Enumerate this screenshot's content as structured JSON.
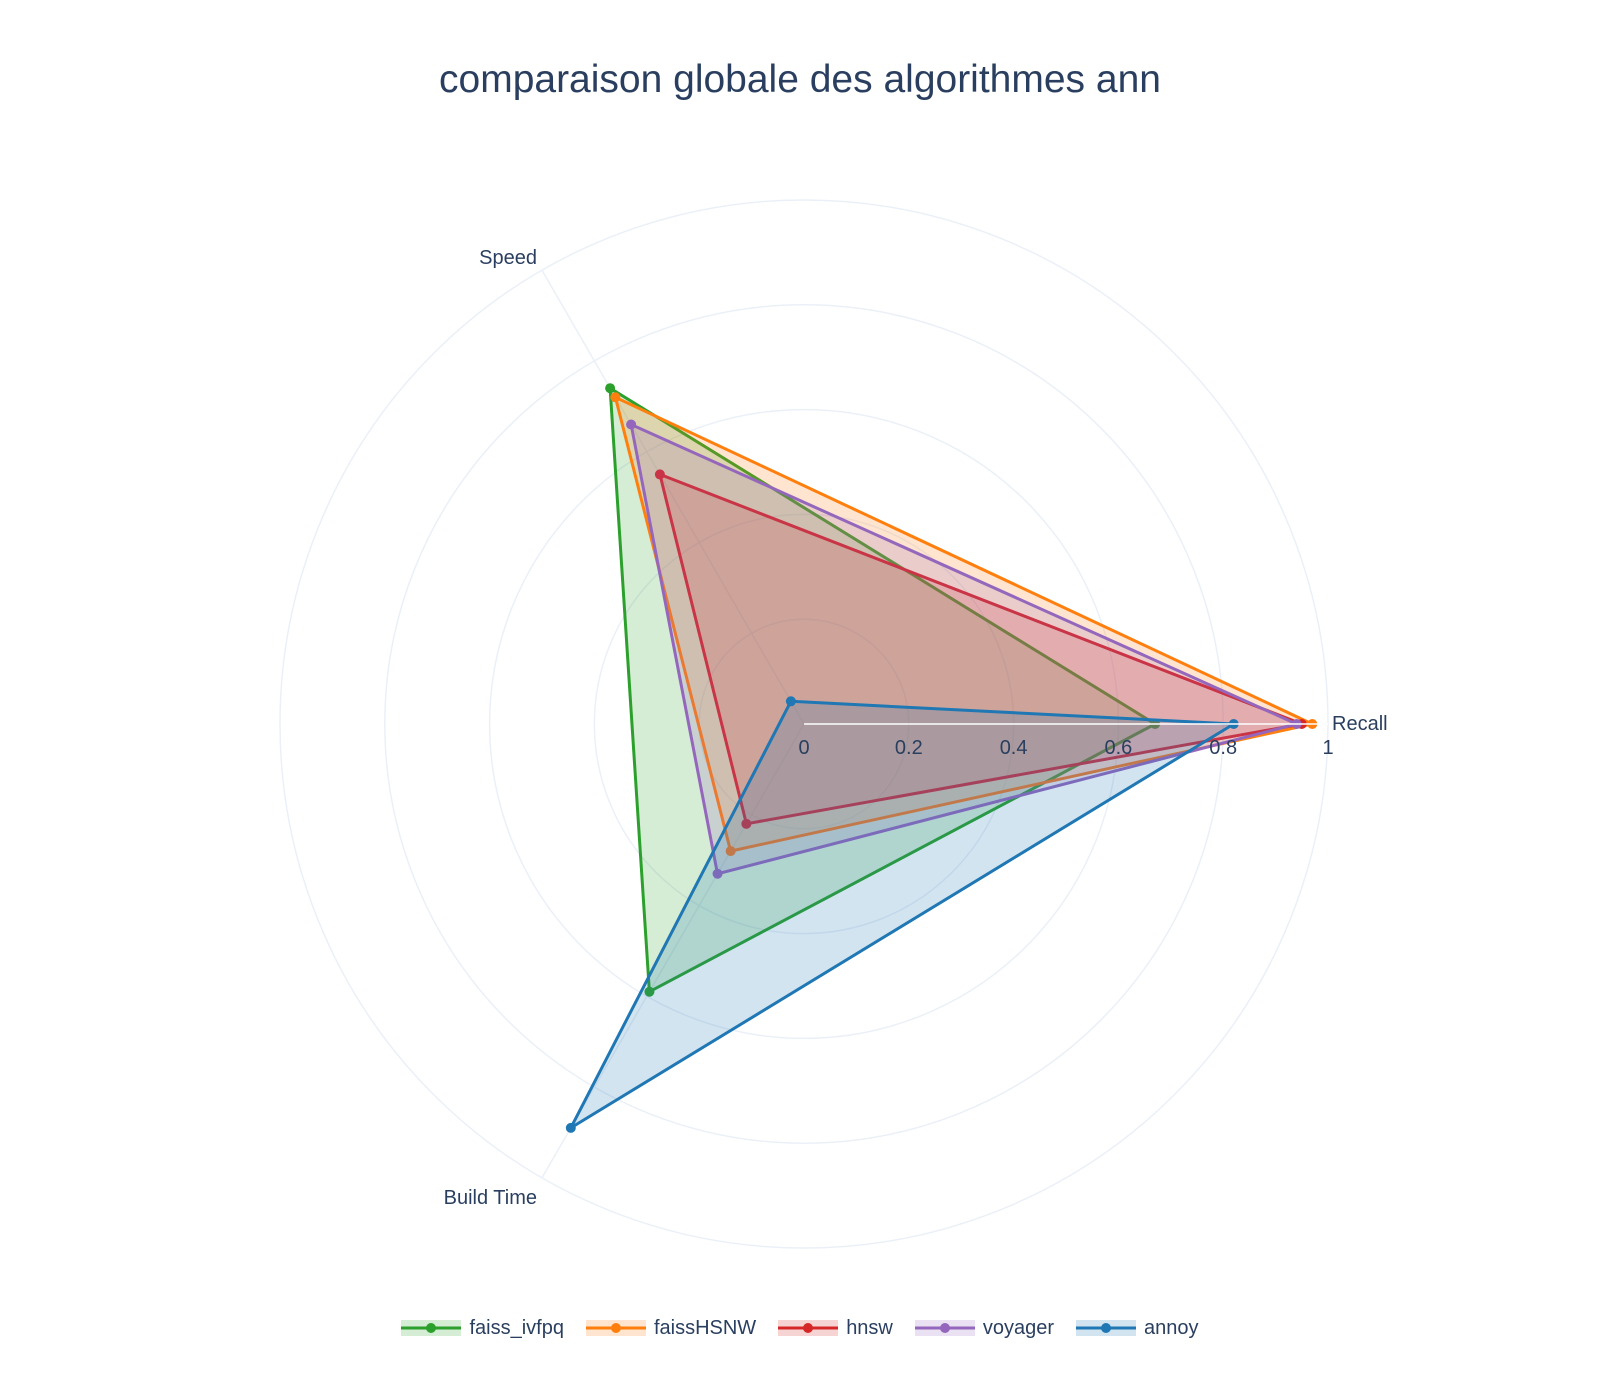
{
  "chart_data": {
    "type": "radar",
    "title": "comparaison globale des algorithmes ann",
    "axes": [
      "Recall",
      "Speed",
      "Build Time"
    ],
    "radial_range": [
      0,
      1
    ],
    "radial_ticks": [
      "0",
      "0.2",
      "0.4",
      "0.6",
      "0.8",
      "1"
    ],
    "fill": "toself",
    "legend_position": "bottom-center",
    "series": [
      {
        "name": "faiss_ivfpq",
        "color": "#2ca02c",
        "values": [
          0.67,
          0.74,
          0.59
        ]
      },
      {
        "name": "faissHSNW",
        "color": "#ff7f0e",
        "values": [
          0.97,
          0.72,
          0.28
        ]
      },
      {
        "name": "hnsw",
        "color": "#d62728",
        "values": [
          0.95,
          0.55,
          0.22
        ]
      },
      {
        "name": "voyager",
        "color": "#9467bd",
        "values": [
          0.94,
          0.66,
          0.33
        ]
      },
      {
        "name": "annoy",
        "color": "#1f77b4",
        "values": [
          0.82,
          0.05,
          0.89
        ]
      }
    ]
  }
}
